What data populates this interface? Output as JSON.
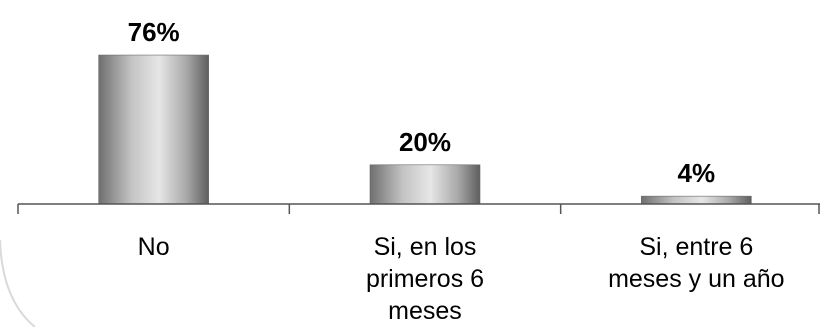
{
  "chart_data": {
    "type": "bar",
    "categories": [
      [
        "No"
      ],
      [
        "Si, en los",
        "primeros 6",
        "meses"
      ],
      [
        "Si, entre 6",
        "meses y un año"
      ]
    ],
    "values": [
      76,
      20,
      4
    ],
    "data_labels": [
      "76%",
      "20%",
      "4%"
    ],
    "title": "",
    "xlabel": "",
    "ylabel": "",
    "ylim": [
      0,
      100
    ],
    "grid": false,
    "legend": "none"
  }
}
